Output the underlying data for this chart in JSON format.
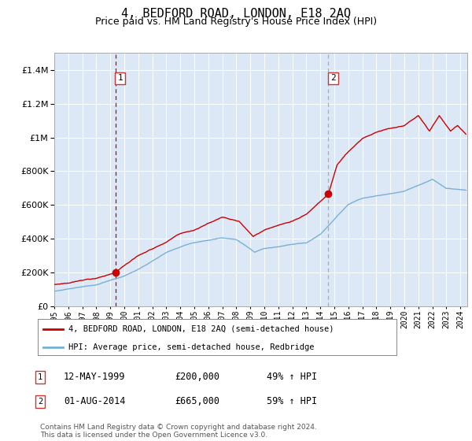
{
  "title": "4, BEDFORD ROAD, LONDON, E18 2AQ",
  "subtitle": "Price paid vs. HM Land Registry's House Price Index (HPI)",
  "title_fontsize": 11,
  "subtitle_fontsize": 9,
  "background_color": "#ffffff",
  "plot_bg_color": "#dce8f5",
  "grid_color": "#ffffff",
  "sale1": {
    "date_num": 1999.36,
    "price": 200000,
    "label": "1"
  },
  "sale2": {
    "date_num": 2014.58,
    "price": 665000,
    "label": "2"
  },
  "vline1_color": "#cc0000",
  "vline2_color": "#aaaaaa",
  "dot_color": "#cc0000",
  "hpi_line_color": "#7ab0d4",
  "price_line_color": "#cc0000",
  "ylim": [
    0,
    1500000
  ],
  "xlim_start": 1995.0,
  "xlim_end": 2024.5,
  "legend_entries": [
    "4, BEDFORD ROAD, LONDON, E18 2AQ (semi-detached house)",
    "HPI: Average price, semi-detached house, Redbridge"
  ],
  "annotation1": [
    "1",
    "12-MAY-1999",
    "£200,000",
    "49% ↑ HPI"
  ],
  "annotation2": [
    "2",
    "01-AUG-2014",
    "£665,000",
    "59% ↑ HPI"
  ],
  "footer": "Contains HM Land Registry data © Crown copyright and database right 2024.\nThis data is licensed under the Open Government Licence v3.0."
}
